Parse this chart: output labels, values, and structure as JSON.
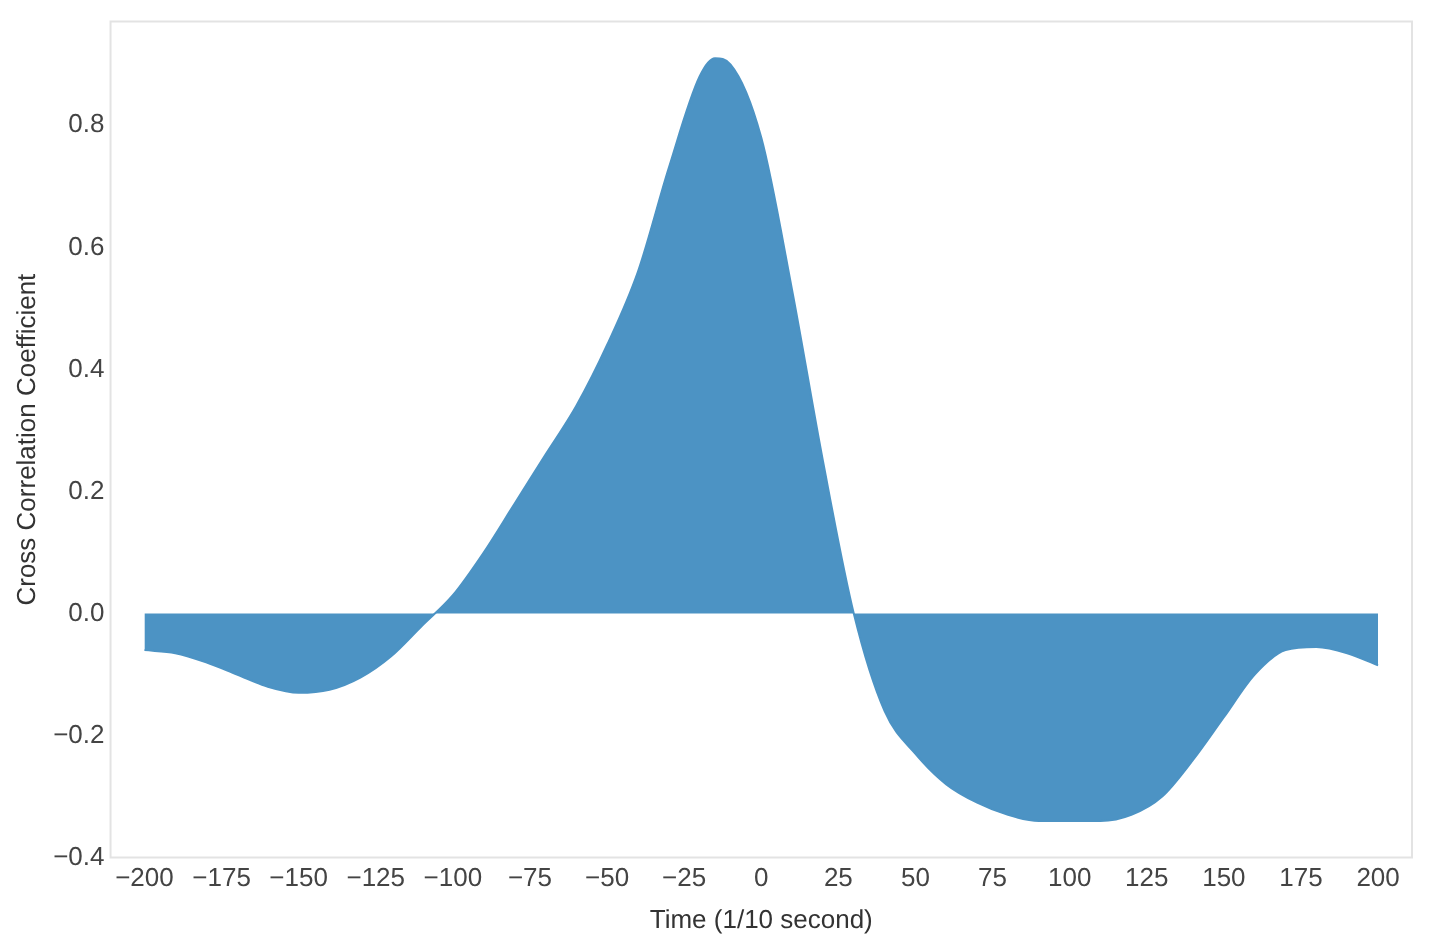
{
  "chart_data": {
    "type": "area",
    "xlabel": "Time (1/10 second)",
    "ylabel": "Cross Correlation Coefficient",
    "x": [
      -200,
      -190,
      -180,
      -170,
      -160,
      -150,
      -140,
      -130,
      -120,
      -110,
      -100,
      -90,
      -80,
      -70,
      -60,
      -50,
      -40,
      -30,
      -20,
      -15,
      -10,
      0,
      10,
      20,
      30,
      40,
      50,
      60,
      70,
      80,
      90,
      100,
      110,
      120,
      130,
      140,
      150,
      160,
      170,
      180,
      190,
      200
    ],
    "series": [
      {
        "color": "#4c93c4",
        "values": [
          -0.06,
          -0.065,
          -0.08,
          -0.1,
          -0.12,
          -0.13,
          -0.125,
          -0.105,
          -0.07,
          -0.02,
          0.03,
          0.1,
          0.18,
          0.26,
          0.34,
          0.44,
          0.56,
          0.73,
          0.88,
          0.91,
          0.9,
          0.78,
          0.53,
          0.25,
          0.0,
          -0.16,
          -0.23,
          -0.28,
          -0.31,
          -0.33,
          -0.34,
          -0.34,
          -0.34,
          -0.33,
          -0.3,
          -0.24,
          -0.17,
          -0.1,
          -0.06,
          -0.055,
          -0.065,
          -0.085
        ]
      }
    ],
    "xlim": [
      -211,
      211
    ],
    "ylim": [
      -0.4,
      0.97
    ],
    "xticks": [
      {
        "value": -200,
        "label": "−200"
      },
      {
        "value": -175,
        "label": "−175"
      },
      {
        "value": -150,
        "label": "−150"
      },
      {
        "value": -125,
        "label": "−125"
      },
      {
        "value": -100,
        "label": "−100"
      },
      {
        "value": -75,
        "label": "−75"
      },
      {
        "value": -50,
        "label": "−50"
      },
      {
        "value": -25,
        "label": "−25"
      },
      0,
      25,
      50,
      75,
      100,
      125,
      150,
      175,
      200
    ],
    "yticks": [
      {
        "value": -0.4,
        "label": "−0.4"
      },
      {
        "value": -0.2,
        "label": "−0.2"
      },
      {
        "value": 0,
        "label": "0.0"
      },
      {
        "value": 0.2,
        "label": "0.2"
      },
      {
        "value": 0.4,
        "label": "0.4"
      },
      {
        "value": 0.6,
        "label": "0.6"
      },
      {
        "value": 0.8,
        "label": "0.8"
      }
    ],
    "grid": false,
    "legend": false
  }
}
